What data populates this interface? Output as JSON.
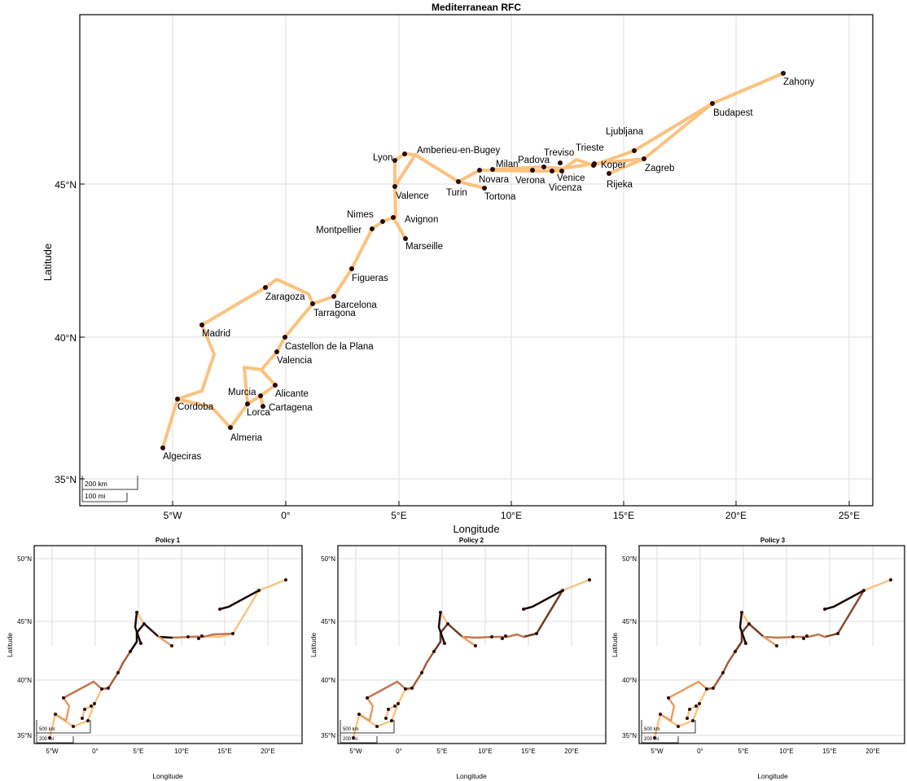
{
  "main": {
    "title": "Mediterranean RFC",
    "xlabel": "Longitude",
    "ylabel": "Latitude",
    "x_ticks": [
      "5°W",
      "0°",
      "5°E",
      "10°E",
      "15°E",
      "20°E",
      "25°E"
    ],
    "y_ticks": [
      "35°N",
      "40°N",
      "45°N"
    ],
    "scale": [
      "200 km",
      "100 mi"
    ],
    "cities": [
      {
        "name": "Zahony"
      },
      {
        "name": "Budapest"
      },
      {
        "name": "Ljubljana"
      },
      {
        "name": "Trieste"
      },
      {
        "name": "Zagreb"
      },
      {
        "name": "Koper"
      },
      {
        "name": "Rijeka"
      },
      {
        "name": "Treviso"
      },
      {
        "name": "Padova"
      },
      {
        "name": "Venice"
      },
      {
        "name": "Vicenza"
      },
      {
        "name": "Verona"
      },
      {
        "name": "Milan"
      },
      {
        "name": "Novara"
      },
      {
        "name": "Tortona"
      },
      {
        "name": "Turin"
      },
      {
        "name": "Amberieu-en-Bugey"
      },
      {
        "name": "Lyon"
      },
      {
        "name": "Valence"
      },
      {
        "name": "Avignon"
      },
      {
        "name": "Nimes"
      },
      {
        "name": "Marseille"
      },
      {
        "name": "Montpellier"
      },
      {
        "name": "Figueras"
      },
      {
        "name": "Barcelona"
      },
      {
        "name": "Tarragona"
      },
      {
        "name": "Zaragoza"
      },
      {
        "name": "Madrid"
      },
      {
        "name": "Castellon de la Plana"
      },
      {
        "name": "Valencia"
      },
      {
        "name": "Alicante"
      },
      {
        "name": "Murcia"
      },
      {
        "name": "Cartagena"
      },
      {
        "name": "Lorca"
      },
      {
        "name": "Cordoba"
      },
      {
        "name": "Almeria"
      },
      {
        "name": "Algeciras"
      }
    ]
  },
  "subplots": [
    {
      "title": "Policy 1",
      "xlabel": "Longitude",
      "ylabel": "Latitude"
    },
    {
      "title": "Policy 2",
      "xlabel": "Longitude",
      "ylabel": "Latitude"
    },
    {
      "title": "Policy 3",
      "xlabel": "Longitude",
      "ylabel": "Latitude"
    }
  ],
  "small_x_ticks": [
    "5°W",
    "0°",
    "5°E",
    "10°E",
    "15°E",
    "20°E"
  ],
  "small_y_ticks": [
    "35°N",
    "40°N",
    "45°N",
    "50°N"
  ],
  "small_scale": [
    "500 km",
    "200 mi"
  ],
  "colors": {
    "route": "#fbc27e",
    "city": "#2a0a0a",
    "dark_route": "#1a0a05"
  }
}
